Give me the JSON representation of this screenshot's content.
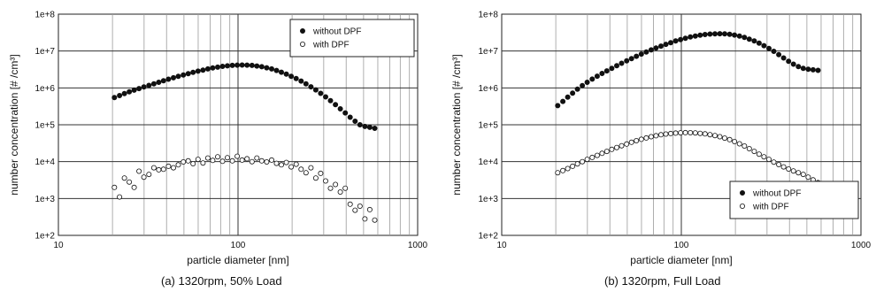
{
  "chart_data": [
    {
      "type": "scatter",
      "caption": "(a) 1320rpm, 50% Load",
      "xlabel": "particle diameter [nm]",
      "ylabel": "number concentration [# /cm³]",
      "xscale": "log",
      "yscale": "log",
      "xlim": [
        10,
        1000
      ],
      "ylim": [
        100,
        100000000
      ],
      "x_tick_labels": [
        "10",
        "100",
        "1000"
      ],
      "y_tick_labels": [
        "1e+2",
        "1e+3",
        "1e+4",
        "1e+5",
        "1e+6",
        "1e+7",
        "1e+8"
      ],
      "grid": true,
      "legend_position": "top-right",
      "series": [
        {
          "name": "without DPF",
          "marker": "filled-circle",
          "x": [
            20.5,
            21.9,
            23.3,
            24.8,
            26.4,
            28.1,
            29.9,
            31.9,
            34.0,
            36.2,
            38.5,
            41.0,
            43.7,
            46.5,
            49.6,
            52.8,
            56.2,
            59.9,
            63.8,
            67.9,
            72.3,
            77.0,
            82.0,
            87.3,
            93.0,
            99.0,
            105.4,
            112.3,
            119.6,
            127.4,
            135.6,
            144.4,
            153.8,
            163.8,
            174.4,
            185.8,
            197.8,
            210.7,
            224.4,
            238.9,
            254.5,
            271.0,
            288.6,
            307.3,
            327.3,
            348.5,
            371.2,
            395.3,
            421.0,
            448.3,
            477.4,
            508.5,
            541.5,
            576.7
          ],
          "y": [
            550000,
            620000,
            700000,
            780000,
            870000,
            960000,
            1060000,
            1170000,
            1290000,
            1420000,
            1570000,
            1720000,
            1880000,
            2060000,
            2240000,
            2430000,
            2630000,
            2840000,
            3050000,
            3260000,
            3470000,
            3660000,
            3830000,
            3970000,
            4080000,
            4150000,
            4180000,
            4150000,
            4070000,
            3930000,
            3750000,
            3520000,
            3260000,
            2970000,
            2670000,
            2370000,
            2070000,
            1790000,
            1530000,
            1290000,
            1070000,
            880000,
            710000,
            570000,
            450000,
            350000,
            270000,
            210000,
            160000,
            125000,
            100000,
            90000,
            85000,
            80000
          ]
        },
        {
          "name": "with DPF",
          "marker": "open-circle",
          "x": [
            20.5,
            21.9,
            23.3,
            24.8,
            26.4,
            28.1,
            29.9,
            31.9,
            34.0,
            36.2,
            38.5,
            41.0,
            43.7,
            46.5,
            49.6,
            52.8,
            56.2,
            59.9,
            63.8,
            67.9,
            72.3,
            77.0,
            82.0,
            87.3,
            93.0,
            99.0,
            105.4,
            112.3,
            119.6,
            127.4,
            135.6,
            144.4,
            153.8,
            163.8,
            174.4,
            185.8,
            197.8,
            210.7,
            224.4,
            238.9,
            254.5,
            271.0,
            288.6,
            307.3,
            327.3,
            348.5,
            371.2,
            395.3,
            421.0,
            448.3,
            477.4,
            508.5,
            541.5,
            576.7
          ],
          "y": [
            2000,
            1100,
            3600,
            2800,
            2000,
            5500,
            3800,
            4500,
            6800,
            6000,
            6200,
            7500,
            6800,
            8200,
            9800,
            10500,
            8800,
            11500,
            9200,
            12500,
            10800,
            13500,
            10200,
            12800,
            10500,
            14000,
            11000,
            12000,
            10000,
            12500,
            10500,
            9800,
            11000,
            9000,
            8200,
            9500,
            7200,
            8500,
            6200,
            5000,
            6800,
            3600,
            4800,
            3000,
            1900,
            2400,
            1500,
            1900,
            700,
            480,
            620,
            280,
            500,
            260
          ]
        }
      ]
    },
    {
      "type": "scatter",
      "caption": "(b) 1320rpm, Full Load",
      "xlabel": "particle diameter [nm]",
      "ylabel": "number concentration [# /cm³]",
      "xscale": "log",
      "yscale": "log",
      "xlim": [
        10,
        1000
      ],
      "ylim": [
        100,
        100000000
      ],
      "x_tick_labels": [
        "10",
        "100",
        "1000"
      ],
      "y_tick_labels": [
        "1e+2",
        "1e+3",
        "1e+4",
        "1e+5",
        "1e+6",
        "1e+7",
        "1e+8"
      ],
      "grid": true,
      "legend_position": "bottom-right",
      "series": [
        {
          "name": "without DPF",
          "marker": "filled-circle",
          "x": [
            20.5,
            21.9,
            23.3,
            24.8,
            26.4,
            28.1,
            29.9,
            31.9,
            34.0,
            36.2,
            38.5,
            41.0,
            43.7,
            46.5,
            49.6,
            52.8,
            56.2,
            59.9,
            63.8,
            67.9,
            72.3,
            77.0,
            82.0,
            87.3,
            93.0,
            99.0,
            105.4,
            112.3,
            119.6,
            127.4,
            135.6,
            144.4,
            153.8,
            163.8,
            174.4,
            185.8,
            197.8,
            210.7,
            224.4,
            238.9,
            254.5,
            271.0,
            288.6,
            307.3,
            327.3,
            348.5,
            371.2,
            395.3,
            421.0,
            448.3,
            477.4,
            508.5,
            541.5,
            576.7
          ],
          "y": [
            330000,
            430000,
            560000,
            720000,
            920000,
            1150000,
            1420000,
            1730000,
            2080000,
            2470000,
            2900000,
            3400000,
            4000000,
            4650000,
            5400000,
            6250000,
            7200000,
            8250000,
            9400000,
            10700000,
            12100000,
            13600000,
            15200000,
            16900000,
            18700000,
            20500000,
            22300000,
            24000000,
            25600000,
            27000000,
            28100000,
            28900000,
            29400000,
            29500000,
            29200000,
            28400000,
            27100000,
            25400000,
            23400000,
            21100000,
            18700000,
            16300000,
            14000000,
            11800000,
            9800000,
            8000000,
            6500000,
            5300000,
            4400000,
            3800000,
            3400000,
            3200000,
            3100000,
            3000000
          ]
        },
        {
          "name": "with DPF",
          "marker": "open-circle",
          "x": [
            20.5,
            21.9,
            23.3,
            24.8,
            26.4,
            28.1,
            29.9,
            31.9,
            34.0,
            36.2,
            38.5,
            41.0,
            43.7,
            46.5,
            49.6,
            52.8,
            56.2,
            59.9,
            63.8,
            67.9,
            72.3,
            77.0,
            82.0,
            87.3,
            93.0,
            99.0,
            105.4,
            112.3,
            119.6,
            127.4,
            135.6,
            144.4,
            153.8,
            163.8,
            174.4,
            185.8,
            197.8,
            210.7,
            224.4,
            238.9,
            254.5,
            271.0,
            288.6,
            307.3,
            327.3,
            348.5,
            371.2,
            395.3,
            421.0,
            448.3,
            477.4,
            508.5,
            541.5,
            576.7
          ],
          "y": [
            5000,
            5700,
            6500,
            7500,
            8700,
            10000,
            11500,
            13000,
            14800,
            16800,
            19000,
            21500,
            24200,
            27000,
            30000,
            33500,
            37000,
            40500,
            44000,
            47500,
            50500,
            53500,
            56000,
            58000,
            59500,
            60500,
            61000,
            60800,
            60000,
            58500,
            56500,
            54000,
            51000,
            47500,
            43500,
            39500,
            35000,
            30500,
            26500,
            22500,
            19000,
            16000,
            13500,
            11500,
            9700,
            8300,
            7200,
            6300,
            5600,
            5000,
            4500,
            3800,
            3200,
            2700
          ]
        }
      ]
    }
  ]
}
